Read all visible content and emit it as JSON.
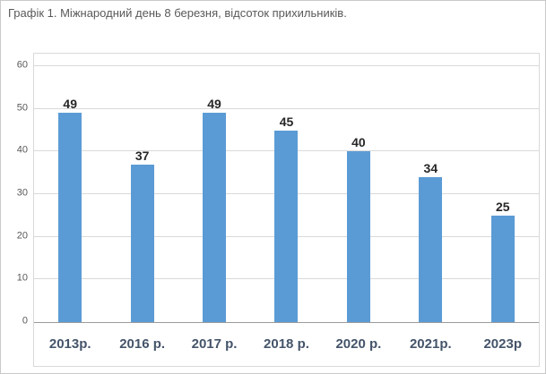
{
  "title": "Графік 1. Міжнародний день 8 березня, відсоток прихильників.",
  "chart_data": {
    "type": "bar",
    "title": "Графік 1. Міжнародний день 8 березня, відсоток прихильників.",
    "categories": [
      "2013р.",
      "2016 р.",
      "2017 р.",
      "2018 р.",
      "2020 р.",
      "2021р.",
      "2023р"
    ],
    "values": [
      49,
      37,
      49,
      45,
      40,
      34,
      25
    ],
    "xlabel": "",
    "ylabel": "",
    "ylim": [
      0,
      60
    ],
    "yticks": [
      0,
      10,
      20,
      30,
      40,
      50,
      60
    ],
    "grid": true,
    "legend": "none",
    "colors": {
      "bar": "#5b9bd5",
      "value_label": "#262626",
      "category_label": "#44546a",
      "tick_label": "#595959",
      "gridline": "#d9d9d9",
      "axis_line": "#9b9b9b"
    }
  }
}
